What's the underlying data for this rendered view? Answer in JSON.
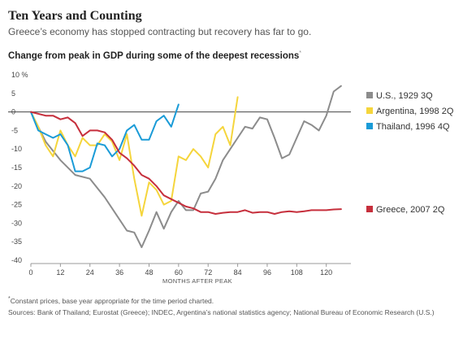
{
  "header": {
    "title": "Ten Years and Counting",
    "subtitle": "Greece’s economy has stopped contracting but recovery has far to go."
  },
  "chart_title": "Change from peak in GDP during some of the deepest recessions",
  "chart_title_mark": "*",
  "footnote": {
    "mark": "*",
    "text": "Constant prices, base year appropriate for the time period charted."
  },
  "sources": "Sources: Bank of Thailand; Eurostat (Greece); INDEC, Argentina’s national statistics agency; National Bureau of Economic Research (U.S.)",
  "chart_data": {
    "type": "line",
    "title": "Change from peak in GDP during some of the deepest recessions",
    "xlabel": "MONTHS AFTER PEAK",
    "ylabel": "",
    "y_unit": "%",
    "xlim": [
      0,
      130
    ],
    "ylim": [
      -40,
      10
    ],
    "x_ticks": [
      0,
      12,
      24,
      36,
      48,
      60,
      72,
      84,
      96,
      108,
      120
    ],
    "y_ticks": [
      10,
      5,
      0,
      -5,
      -10,
      -15,
      -20,
      -25,
      -30,
      -35,
      -40
    ],
    "grid": false,
    "zero_line": true,
    "legend": "direct labels at right",
    "series": [
      {
        "name": "U.S., 1929 3Q",
        "color": "#8c8c8c",
        "x": [
          0,
          6,
          12,
          18,
          24,
          30,
          36,
          39,
          42,
          45,
          48,
          51,
          54,
          57,
          60,
          63,
          66,
          69,
          72,
          75,
          78,
          81,
          84,
          87,
          90,
          93,
          96,
          99,
          102,
          105,
          108,
          111,
          114,
          117,
          120,
          123,
          126
        ],
        "y": [
          0,
          -8,
          -13,
          -17,
          -18,
          -23,
          -29,
          -32,
          -32.5,
          -36.5,
          -32,
          -27,
          -31.5,
          -27,
          -24,
          -26.5,
          -26.5,
          -22,
          -21.5,
          -18,
          -13,
          -10,
          -7,
          -4,
          -4.5,
          -1.5,
          -2,
          -7,
          -12.5,
          -11.5,
          -7,
          -2.5,
          -3.5,
          -5,
          -1,
          5.5,
          7
        ]
      },
      {
        "name": "Argentina, 1998 2Q",
        "color": "#f5d53c",
        "x": [
          0,
          3,
          6,
          9,
          12,
          15,
          18,
          21,
          24,
          27,
          30,
          33,
          36,
          39,
          42,
          45,
          48,
          51,
          54,
          57,
          60,
          63,
          66,
          69,
          72,
          75,
          78,
          81,
          84
        ],
        "y": [
          0,
          -4,
          -9,
          -12,
          -5,
          -9,
          -12,
          -7,
          -9,
          -9,
          -6,
          -8,
          -13,
          -6,
          -18,
          -28,
          -19,
          -21,
          -25,
          -24,
          -12,
          -13,
          -10,
          -12,
          -15,
          -6,
          -4,
          -9,
          4
        ]
      },
      {
        "name": "Thailand, 1996 4Q",
        "color": "#1a9bd7",
        "x": [
          0,
          3,
          6,
          9,
          12,
          15,
          18,
          21,
          24,
          27,
          30,
          33,
          36,
          39,
          42,
          45,
          48,
          51,
          54,
          57,
          60
        ],
        "y": [
          0,
          -5,
          -6,
          -7,
          -6,
          -9,
          -16,
          -16,
          -15,
          -8.5,
          -9,
          -12,
          -10,
          -5,
          -3.5,
          -7.5,
          -7.5,
          -2.5,
          -1,
          -4,
          2
        ]
      },
      {
        "name": "Greece, 2007 2Q",
        "color": "#c62f3c",
        "x": [
          0,
          3,
          6,
          9,
          12,
          15,
          18,
          21,
          24,
          27,
          30,
          33,
          36,
          39,
          42,
          45,
          48,
          51,
          54,
          57,
          60,
          63,
          66,
          69,
          72,
          75,
          78,
          81,
          84,
          87,
          90,
          93,
          96,
          99,
          102,
          105,
          108,
          111,
          114,
          117,
          120,
          123,
          126
        ],
        "y": [
          0,
          -0.5,
          -1,
          -1,
          -2,
          -1.5,
          -3,
          -6.5,
          -5,
          -5,
          -5.5,
          -7.5,
          -11,
          -12.5,
          -14.5,
          -17,
          -18,
          -20,
          -22.5,
          -23.5,
          -24.5,
          -25.5,
          -26,
          -27,
          -27,
          -27.5,
          -27.2,
          -27,
          -27,
          -26.5,
          -27.2,
          -27,
          -27,
          -27.5,
          -27,
          -26.8,
          -27,
          -26.8,
          -26.5,
          -26.5,
          -26.5,
          -26.3,
          -26.2
        ]
      }
    ]
  }
}
